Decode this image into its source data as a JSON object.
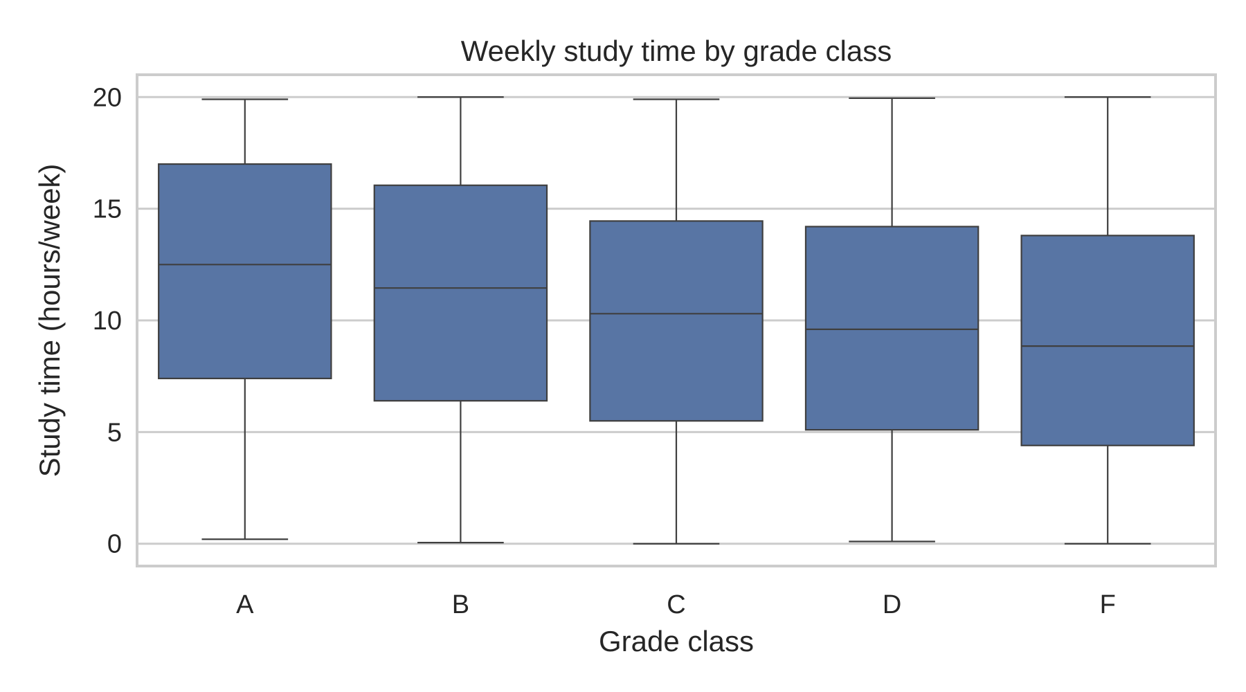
{
  "chart_data": {
    "type": "box",
    "title": "Weekly study time by grade class",
    "xlabel": "Grade class",
    "ylabel": "Study time (hours/week)",
    "categories": [
      "A",
      "B",
      "C",
      "D",
      "F"
    ],
    "boxes": [
      {
        "category": "A",
        "whislo": 0.2,
        "q1": 7.4,
        "median": 12.5,
        "q3": 17.0,
        "whishi": 19.9
      },
      {
        "category": "B",
        "whislo": 0.05,
        "q1": 6.4,
        "median": 11.45,
        "q3": 16.05,
        "whishi": 20.0
      },
      {
        "category": "C",
        "whislo": 0.0,
        "q1": 5.5,
        "median": 10.3,
        "q3": 14.45,
        "whishi": 19.9
      },
      {
        "category": "D",
        "whislo": 0.1,
        "q1": 5.1,
        "median": 9.6,
        "q3": 14.2,
        "whishi": 19.95
      },
      {
        "category": "F",
        "whislo": 0.0,
        "q1": 4.4,
        "median": 8.85,
        "q3": 13.8,
        "whishi": 20.0
      }
    ],
    "y_ticks": [
      0,
      5,
      10,
      15,
      20
    ],
    "ylim": [
      -1.0,
      21.0
    ],
    "grid": "horizontal",
    "colors": {
      "box_fill": "#5875a4",
      "line": "#3f3f3f",
      "grid": "#cccccc",
      "frame": "#cccccc",
      "text": "#262626"
    }
  }
}
